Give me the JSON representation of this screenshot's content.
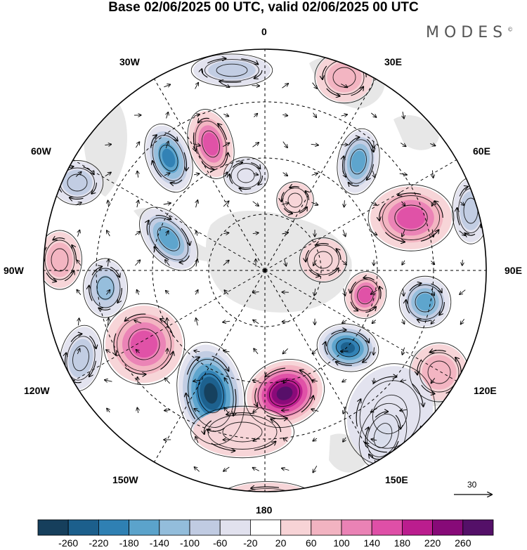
{
  "title": "Base 02/06/2025 00 UTC, valid 02/06/2025 00 UTC",
  "logo": {
    "text": "MODES",
    "mark": "©"
  },
  "meridian_labels": {
    "lon_0": "0",
    "lon_30e": "30E",
    "lon_60e": "60E",
    "lon_90e": "90E",
    "lon_120e": "120E",
    "lon_150e": "150E",
    "lon_180": "180",
    "lon_150w": "150W",
    "lon_120w": "120W",
    "lon_90w": "90W",
    "lon_60w": "60W",
    "lon_30w": "30W"
  },
  "projection": "south polar stereographic",
  "vector_reference": {
    "value": "30"
  },
  "colorbar": {
    "ticks": [
      "-260",
      "-220",
      "-180",
      "-140",
      "-100",
      "-60",
      "-20",
      "20",
      "60",
      "100",
      "140",
      "180",
      "220",
      "260"
    ],
    "colors": [
      "#163f5c",
      "#1c5f8c",
      "#2f80b3",
      "#5ba3cb",
      "#93bddb",
      "#c0cbe2",
      "#e1e1ee",
      "#ffffff",
      "#f7d3d6",
      "#f2b3c1",
      "#ea82b5",
      "#df4fa7",
      "#bb1d8e",
      "#870a78",
      "#541068"
    ]
  },
  "colors": {
    "land": "#e7e7e7",
    "strong_positive": "#9e1483",
    "strong_negative": "#163f5c"
  }
}
